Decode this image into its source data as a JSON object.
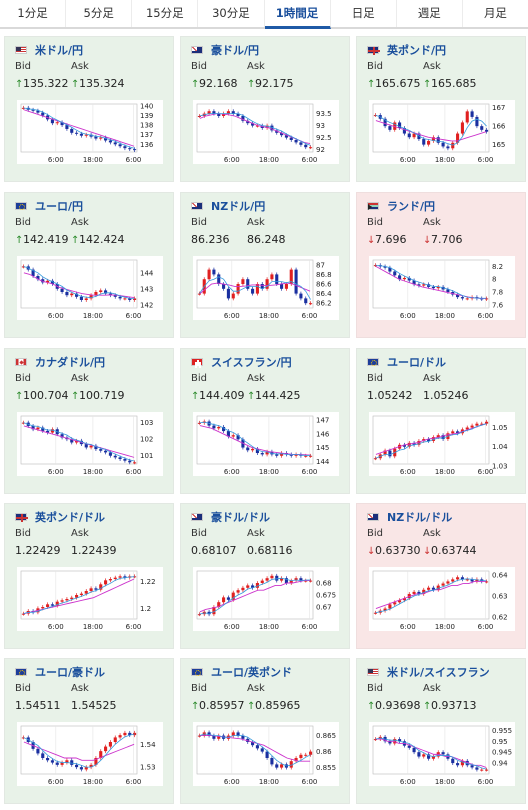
{
  "tabs": [
    {
      "label": "1分足",
      "active": false
    },
    {
      "label": "5分足",
      "active": false
    },
    {
      "label": "15分足",
      "active": false
    },
    {
      "label": "30分足",
      "active": false
    },
    {
      "label": "1時間足",
      "active": true
    },
    {
      "label": "日足",
      "active": false
    },
    {
      "label": "週足",
      "active": false
    },
    {
      "label": "月足",
      "active": false
    }
  ],
  "labels": {
    "bid": "Bid",
    "ask": "Ask"
  },
  "x_ticks": [
    "6:00",
    "18:00",
    "6:00"
  ],
  "colors": {
    "up": "#2a8a2a",
    "down": "#cc3333",
    "bullish_candle": "#e02020",
    "bearish_candle": "#1a2fa0",
    "ma_short": "#3399dd",
    "ma_long": "#cc33cc"
  },
  "cards": [
    {
      "pair": "米ドル/円",
      "flag": "us",
      "dir": "up",
      "bid": "135.322",
      "ask": "135.324",
      "yticks": [
        "140",
        "139",
        "138",
        "137",
        "136"
      ],
      "trend": [
        139.8,
        139.6,
        139.5,
        139.3,
        139.0,
        138.6,
        138.2,
        138.3,
        138.0,
        137.6,
        137.2,
        137.1,
        136.9,
        137.0,
        136.8,
        136.6,
        136.7,
        136.4,
        136.2,
        136.0,
        135.8,
        135.6,
        135.5,
        135.4
      ],
      "ma": [
        139.6,
        139.4,
        139.2,
        139.0,
        138.8,
        138.6,
        138.4,
        138.2,
        138.0,
        137.8,
        137.6,
        137.4,
        137.2,
        137.0,
        136.8,
        136.6,
        136.4,
        136.2,
        136.0,
        135.8
      ],
      "ymin": 135.2,
      "ymax": 140.2
    },
    {
      "pair": "豪ドル/円",
      "flag": "au",
      "dir": "up",
      "bid": "92.168",
      "ask": "92.175",
      "yticks": [
        "93.5",
        "93",
        "92.5",
        "92"
      ],
      "trend": [
        93.4,
        93.5,
        93.6,
        93.5,
        93.4,
        93.5,
        93.6,
        93.5,
        93.4,
        93.2,
        93.1,
        93.0,
        93.0,
        92.9,
        93.0,
        92.8,
        92.7,
        92.6,
        92.5,
        92.4,
        92.3,
        92.2,
        92.1,
        92.1
      ],
      "ma": [
        93.3,
        93.4,
        93.45,
        93.5,
        93.48,
        93.45,
        93.4,
        93.3,
        93.2,
        93.1,
        93.0,
        92.95,
        92.9,
        92.8,
        92.7,
        92.6,
        92.5,
        92.4,
        92.3,
        92.25
      ],
      "ymin": 91.9,
      "ymax": 93.9
    },
    {
      "pair": "英ポンド/円",
      "flag": "gb",
      "dir": "up",
      "bid": "165.675",
      "ask": "165.685",
      "yticks": [
        "167",
        "166",
        "165"
      ],
      "trend": [
        166.6,
        166.4,
        166.0,
        165.8,
        166.2,
        165.9,
        165.6,
        165.4,
        165.6,
        165.3,
        165.0,
        165.2,
        165.4,
        165.1,
        164.9,
        164.8,
        165.1,
        165.6,
        166.2,
        166.8,
        166.5,
        166.0,
        165.8,
        165.7
      ],
      "ma": [
        166.3,
        166.2,
        166.1,
        166.0,
        165.9,
        165.8,
        165.7,
        165.6,
        165.5,
        165.4,
        165.35,
        165.3,
        165.25,
        165.2,
        165.2,
        165.3,
        165.4,
        165.5,
        165.6,
        165.7
      ],
      "ymin": 164.6,
      "ymax": 167.2
    },
    {
      "pair": "ユーロ/円",
      "flag": "eu",
      "dir": "up",
      "bid": "142.419",
      "ask": "142.424",
      "yticks": [
        "144",
        "143",
        "142"
      ],
      "trend": [
        144.4,
        144.2,
        143.8,
        143.6,
        143.4,
        143.5,
        143.3,
        143.0,
        142.8,
        142.6,
        142.7,
        142.5,
        142.3,
        142.4,
        142.6,
        142.8,
        142.9,
        142.7,
        142.6,
        142.5,
        142.4,
        142.4,
        142.3,
        142.4
      ],
      "ma": [
        144.0,
        143.9,
        143.7,
        143.5,
        143.4,
        143.3,
        143.1,
        143.0,
        142.9,
        142.8,
        142.7,
        142.65,
        142.6,
        142.6,
        142.6,
        142.62,
        142.6,
        142.55,
        142.5,
        142.45
      ],
      "ymin": 141.8,
      "ymax": 144.8
    },
    {
      "pair": "NZドル/円",
      "flag": "nz",
      "dir": "none",
      "bid": "86.236",
      "ask": "86.248",
      "yticks": [
        "87",
        "86.8",
        "86.6",
        "86.4",
        "86.2"
      ],
      "trend": [
        86.4,
        86.7,
        86.9,
        86.8,
        86.6,
        86.5,
        86.3,
        86.4,
        86.6,
        86.7,
        86.5,
        86.4,
        86.6,
        86.5,
        86.7,
        86.8,
        86.6,
        86.5,
        86.6,
        86.9,
        86.4,
        86.3,
        86.2,
        86.2
      ],
      "ma": [
        86.4,
        86.5,
        86.6,
        86.62,
        86.6,
        86.58,
        86.55,
        86.55,
        86.56,
        86.58,
        86.58,
        86.57,
        86.57,
        86.58,
        86.6,
        86.62,
        86.6,
        86.55,
        86.5,
        86.45
      ],
      "ymin": 86.1,
      "ymax": 87.1
    },
    {
      "pair": "ランド/円",
      "flag": "za",
      "dir": "down",
      "red": true,
      "bid": "7.696",
      "ask": "7.706",
      "yticks": [
        "8.2",
        "8",
        "7.8",
        "7.6"
      ],
      "trend": [
        8.22,
        8.2,
        8.18,
        8.12,
        8.06,
        8.0,
        8.02,
        7.98,
        7.92,
        7.9,
        7.92,
        7.88,
        7.86,
        7.88,
        7.84,
        7.8,
        7.76,
        7.72,
        7.7,
        7.7,
        7.72,
        7.7,
        7.69,
        7.7
      ],
      "ma": [
        8.2,
        8.15,
        8.1,
        8.05,
        8.0,
        7.97,
        7.94,
        7.91,
        7.88,
        7.86,
        7.84,
        7.82,
        7.8,
        7.78,
        7.76,
        7.74,
        7.72,
        7.71,
        7.7,
        7.7
      ],
      "ymin": 7.55,
      "ymax": 8.3
    },
    {
      "pair": "カナダドル/円",
      "flag": "ca",
      "dir": "up",
      "bid": "100.704",
      "ask": "100.719",
      "yticks": [
        "103",
        "102",
        "101"
      ],
      "trend": [
        103.0,
        102.8,
        102.6,
        102.7,
        102.5,
        102.4,
        102.6,
        102.3,
        102.1,
        102.0,
        101.8,
        101.9,
        101.7,
        101.5,
        101.6,
        101.4,
        101.3,
        101.2,
        101.0,
        100.9,
        100.8,
        100.7,
        100.6,
        100.6
      ],
      "ma": [
        102.8,
        102.7,
        102.6,
        102.5,
        102.4,
        102.3,
        102.2,
        102.1,
        102.0,
        101.9,
        101.8,
        101.7,
        101.6,
        101.5,
        101.4,
        101.3,
        101.2,
        101.1,
        101.0,
        100.9
      ],
      "ymin": 100.5,
      "ymax": 103.4
    },
    {
      "pair": "スイスフラン/円",
      "flag": "ch",
      "dir": "up",
      "bid": "144.409",
      "ask": "144.425",
      "yticks": [
        "147",
        "146",
        "145",
        "144"
      ],
      "trend": [
        146.8,
        146.9,
        146.6,
        146.4,
        146.5,
        146.2,
        145.8,
        145.9,
        145.6,
        145.0,
        144.8,
        144.9,
        144.6,
        144.5,
        144.7,
        144.5,
        144.4,
        144.6,
        144.5,
        144.4,
        144.5,
        144.4,
        144.4,
        144.4
      ],
      "ma": [
        146.6,
        146.5,
        146.4,
        146.2,
        146.0,
        145.8,
        145.6,
        145.4,
        145.2,
        145.0,
        144.9,
        144.8,
        144.7,
        144.65,
        144.6,
        144.55,
        144.5,
        144.5,
        144.48,
        144.45
      ],
      "ymin": 143.8,
      "ymax": 147.3
    },
    {
      "pair": "ユーロ/ドル",
      "flag": "eu",
      "dir": "none",
      "bid": "1.05242",
      "ask": "1.05246",
      "yticks": [
        "1.05",
        "1.04",
        "1.03"
      ],
      "trend": [
        1.034,
        1.036,
        1.038,
        1.035,
        1.039,
        1.041,
        1.04,
        1.042,
        1.041,
        1.043,
        1.044,
        1.043,
        1.045,
        1.046,
        1.044,
        1.047,
        1.048,
        1.047,
        1.049,
        1.05,
        1.051,
        1.052,
        1.052,
        1.053
      ],
      "ma": [
        1.036,
        1.037,
        1.038,
        1.039,
        1.04,
        1.041,
        1.0415,
        1.042,
        1.043,
        1.044,
        1.0445,
        1.045,
        1.046,
        1.0465,
        1.047,
        1.048,
        1.049,
        1.05,
        1.051,
        1.052
      ],
      "ymin": 1.031,
      "ymax": 1.056
    },
    {
      "pair": "英ポンド/ドル",
      "flag": "gb",
      "dir": "none",
      "bid": "1.22429",
      "ask": "1.22439",
      "yticks": [
        "1.22",
        "1.2"
      ],
      "trend": [
        1.196,
        1.198,
        1.197,
        1.2,
        1.201,
        1.203,
        1.202,
        1.205,
        1.206,
        1.207,
        1.208,
        1.21,
        1.211,
        1.213,
        1.215,
        1.214,
        1.218,
        1.221,
        1.222,
        1.223,
        1.224,
        1.223,
        1.224,
        1.224
      ],
      "ma": [
        1.196,
        1.197,
        1.198,
        1.199,
        1.2,
        1.201,
        1.202,
        1.203,
        1.204,
        1.205,
        1.206,
        1.207,
        1.208,
        1.21,
        1.212,
        1.214,
        1.216,
        1.218,
        1.22,
        1.222
      ],
      "ymin": 1.192,
      "ymax": 1.228
    },
    {
      "pair": "豪ドル/ドル",
      "flag": "au",
      "dir": "none",
      "bid": "0.68107",
      "ask": "0.68116",
      "yticks": [
        "0.68",
        "0.675",
        "0.67"
      ],
      "trend": [
        0.667,
        0.668,
        0.667,
        0.67,
        0.672,
        0.674,
        0.673,
        0.676,
        0.677,
        0.678,
        0.679,
        0.678,
        0.68,
        0.681,
        0.682,
        0.683,
        0.681,
        0.682,
        0.68,
        0.681,
        0.682,
        0.681,
        0.681,
        0.681
      ],
      "ma": [
        0.668,
        0.669,
        0.6695,
        0.67,
        0.671,
        0.672,
        0.673,
        0.674,
        0.675,
        0.676,
        0.677,
        0.677,
        0.678,
        0.679,
        0.679,
        0.68,
        0.68,
        0.6805,
        0.681,
        0.681
      ],
      "ymin": 0.665,
      "ymax": 0.685
    },
    {
      "pair": "NZドル/ドル",
      "flag": "nz",
      "dir": "down",
      "red": true,
      "bid": "0.63730",
      "ask": "0.63744",
      "yticks": [
        "0.64",
        "0.63",
        "0.62"
      ],
      "trend": [
        0.622,
        0.623,
        0.624,
        0.626,
        0.627,
        0.628,
        0.629,
        0.631,
        0.632,
        0.631,
        0.633,
        0.634,
        0.633,
        0.635,
        0.636,
        0.637,
        0.638,
        0.639,
        0.638,
        0.638,
        0.637,
        0.638,
        0.637,
        0.637
      ],
      "ma": [
        0.624,
        0.625,
        0.626,
        0.627,
        0.628,
        0.629,
        0.63,
        0.631,
        0.631,
        0.632,
        0.633,
        0.633,
        0.634,
        0.635,
        0.635,
        0.636,
        0.636,
        0.637,
        0.637,
        0.637
      ],
      "ymin": 0.619,
      "ymax": 0.642
    },
    {
      "pair": "ユーロ/豪ドル",
      "flag": "eu",
      "dir": "none",
      "bid": "1.54511",
      "ask": "1.54525",
      "yticks": [
        "1.54",
        "1.53"
      ],
      "trend": [
        1.543,
        1.541,
        1.538,
        1.536,
        1.534,
        1.533,
        1.532,
        1.531,
        1.532,
        1.533,
        1.531,
        1.53,
        1.529,
        1.53,
        1.531,
        1.534,
        1.537,
        1.539,
        1.541,
        1.543,
        1.544,
        1.545,
        1.544,
        1.545
      ],
      "ma": [
        1.541,
        1.54,
        1.539,
        1.538,
        1.537,
        1.536,
        1.535,
        1.534,
        1.534,
        1.534,
        1.533,
        1.533,
        1.533,
        1.534,
        1.535,
        1.536,
        1.537,
        1.538,
        1.539,
        1.54
      ],
      "ymin": 1.527,
      "ymax": 1.548
    },
    {
      "pair": "ユーロ/英ポンド",
      "flag": "eu",
      "dir": "up",
      "bid": "0.85957",
      "ask": "0.85965",
      "yticks": [
        "0.865",
        "0.86",
        "0.855"
      ],
      "trend": [
        0.865,
        0.866,
        0.865,
        0.864,
        0.865,
        0.864,
        0.865,
        0.866,
        0.865,
        0.864,
        0.863,
        0.862,
        0.861,
        0.86,
        0.858,
        0.856,
        0.855,
        0.856,
        0.855,
        0.857,
        0.858,
        0.859,
        0.859,
        0.86
      ],
      "ma": [
        0.865,
        0.865,
        0.865,
        0.8648,
        0.8646,
        0.8644,
        0.8642,
        0.864,
        0.8635,
        0.863,
        0.8625,
        0.862,
        0.861,
        0.86,
        0.859,
        0.858,
        0.8575,
        0.857,
        0.857,
        0.857
      ],
      "ymin": 0.853,
      "ymax": 0.868
    },
    {
      "pair": "米ドル/スイスフラン",
      "flag": "us",
      "dir": "up",
      "bid": "0.93698",
      "ask": "0.93713",
      "yticks": [
        "0.955",
        "0.95",
        "0.945",
        "0.94"
      ],
      "trend": [
        0.951,
        0.952,
        0.95,
        0.949,
        0.951,
        0.95,
        0.948,
        0.947,
        0.945,
        0.943,
        0.944,
        0.942,
        0.943,
        0.945,
        0.944,
        0.942,
        0.94,
        0.939,
        0.941,
        0.939,
        0.938,
        0.937,
        0.937,
        0.937
      ],
      "ma": [
        0.951,
        0.951,
        0.95,
        0.95,
        0.949,
        0.949,
        0.948,
        0.947,
        0.946,
        0.945,
        0.944,
        0.944,
        0.943,
        0.943,
        0.942,
        0.941,
        0.94,
        0.939,
        0.939,
        0.938
      ],
      "ymin": 0.935,
      "ymax": 0.957
    }
  ]
}
